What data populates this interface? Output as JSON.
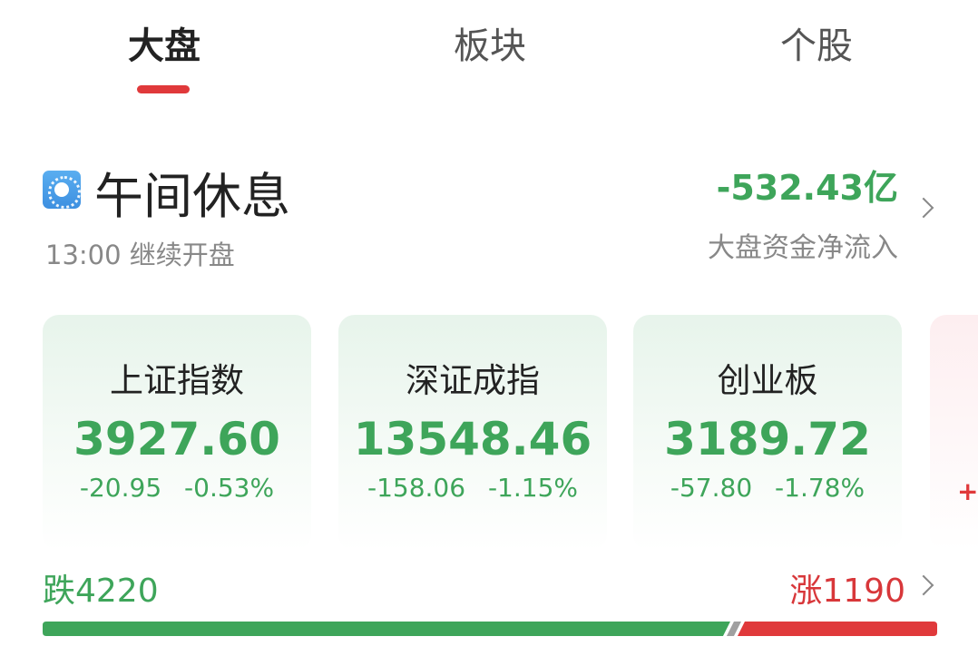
{
  "tabs": [
    {
      "label": "大盘",
      "active": true
    },
    {
      "label": "板块"
    },
    {
      "label": "个股"
    }
  ],
  "status": {
    "icon": "sun-icon",
    "title": "午间休息",
    "subtitle": "13:00 继续开盘"
  },
  "fund_flow": {
    "value": "-532.43亿",
    "label": "大盘资金净流入"
  },
  "indices": [
    {
      "name": "上证指数",
      "value": "3927.60",
      "change": "-20.95",
      "percent": "-0.53%"
    },
    {
      "name": "深证成指",
      "value": "13548.46",
      "change": "-158.06",
      "percent": "-1.15%"
    },
    {
      "name": "创业板",
      "value": "3189.72",
      "change": "-57.80",
      "percent": "-1.78%"
    }
  ],
  "partial_card": {
    "text": "+"
  },
  "breadth": {
    "down_label": "跌4220",
    "up_label": "涨1190",
    "down": 4220,
    "up": 1190,
    "down_color": "#3ea55a",
    "up_color": "#e0393b",
    "flat_color": "#a0a0a0"
  }
}
